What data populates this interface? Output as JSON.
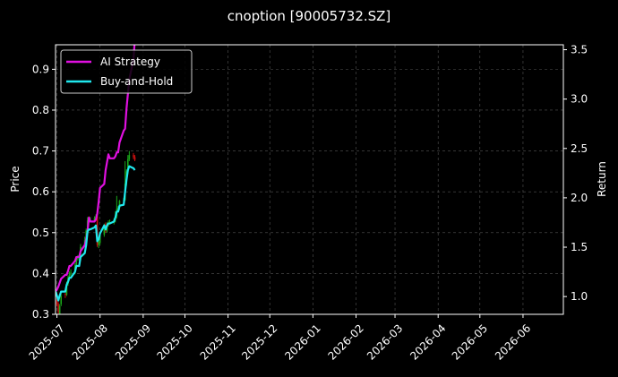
{
  "chart_data": {
    "type": "line",
    "title": "cnoption [90005732.SZ]",
    "ylabel_left": "Price",
    "ylabel_right": "Return",
    "x_ticks": [
      "2025-07",
      "2025-08",
      "2025-09",
      "2025-10",
      "2025-11",
      "2025-12",
      "2026-01",
      "2026-02",
      "2026-03",
      "2026-04",
      "2026-05",
      "2026-06"
    ],
    "xlim": [
      "2025-06-30",
      "2026-06-30"
    ],
    "ylim_left": [
      0.3,
      0.96
    ],
    "ylim_right": [
      0.82,
      3.55
    ],
    "yticks_left": [
      "0.3",
      "0.4",
      "0.5",
      "0.6",
      "0.7",
      "0.8",
      "0.9"
    ],
    "yticks_right": [
      "1.0",
      "1.5",
      "2.0",
      "2.5",
      "3.0",
      "3.5"
    ],
    "grid": true,
    "legend_position": "top-left",
    "colors": {
      "background": "#000000",
      "ai_strategy": "#e010e0",
      "buy_and_hold": "#20e8ee",
      "candle_up": "#1aa81a",
      "candle_down": "#cc1010",
      "grid": "#555555"
    },
    "series": [
      {
        "name": "AI Strategy",
        "axis": "right",
        "x": [
          "2025-06-30",
          "2025-07-01",
          "2025-07-02",
          "2025-07-03",
          "2025-07-04",
          "2025-07-07",
          "2025-07-08",
          "2025-07-09",
          "2025-07-10",
          "2025-07-11",
          "2025-07-14",
          "2025-07-15",
          "2025-07-16",
          "2025-07-17",
          "2025-07-18",
          "2025-07-21",
          "2025-07-22",
          "2025-07-23",
          "2025-07-24",
          "2025-07-25",
          "2025-07-28",
          "2025-07-29",
          "2025-07-30",
          "2025-07-31",
          "2025-08-01",
          "2025-08-04",
          "2025-08-05",
          "2025-08-06",
          "2025-08-07",
          "2025-08-08",
          "2025-08-11",
          "2025-08-12",
          "2025-08-13",
          "2025-08-14",
          "2025-08-15",
          "2025-08-18",
          "2025-08-19",
          "2025-08-20",
          "2025-08-21",
          "2025-08-22",
          "2025-08-25",
          "2025-08-26"
        ],
        "values": [
          1.05,
          1.07,
          1.1,
          1.14,
          1.18,
          1.22,
          1.22,
          1.26,
          1.31,
          1.31,
          1.36,
          1.4,
          1.4,
          1.4,
          1.46,
          1.52,
          1.58,
          1.66,
          1.8,
          1.76,
          1.76,
          1.78,
          1.84,
          1.96,
          2.1,
          2.14,
          2.28,
          2.36,
          2.44,
          2.4,
          2.4,
          2.42,
          2.46,
          2.46,
          2.56,
          2.68,
          2.7,
          2.9,
          3.05,
          3.2,
          3.4,
          3.6
        ]
      },
      {
        "name": "Buy-and-Hold",
        "axis": "right",
        "x": [
          "2025-06-30",
          "2025-07-01",
          "2025-07-02",
          "2025-07-03",
          "2025-07-04",
          "2025-07-07",
          "2025-07-08",
          "2025-07-09",
          "2025-07-10",
          "2025-07-11",
          "2025-07-14",
          "2025-07-15",
          "2025-07-16",
          "2025-07-17",
          "2025-07-18",
          "2025-07-21",
          "2025-07-22",
          "2025-07-23",
          "2025-07-24",
          "2025-07-25",
          "2025-07-28",
          "2025-07-29",
          "2025-07-30",
          "2025-07-31",
          "2025-08-01",
          "2025-08-04",
          "2025-08-05",
          "2025-08-06",
          "2025-08-07",
          "2025-08-08",
          "2025-08-11",
          "2025-08-12",
          "2025-08-13",
          "2025-08-14",
          "2025-08-15",
          "2025-08-18",
          "2025-08-19",
          "2025-08-20",
          "2025-08-21",
          "2025-08-22",
          "2025-08-25",
          "2025-08-26"
        ],
        "values": [
          1.05,
          1.01,
          0.96,
          1.01,
          1.05,
          1.05,
          1.12,
          1.15,
          1.19,
          1.19,
          1.25,
          1.31,
          1.31,
          1.31,
          1.4,
          1.44,
          1.52,
          1.66,
          1.68,
          1.68,
          1.7,
          1.72,
          1.56,
          1.58,
          1.64,
          1.72,
          1.68,
          1.72,
          1.74,
          1.74,
          1.76,
          1.8,
          1.86,
          1.86,
          1.92,
          1.93,
          2.06,
          2.18,
          2.28,
          2.32,
          2.3,
          2.28
        ]
      }
    ],
    "candles": {
      "axis": "left",
      "x": [
        "2025-07-01",
        "2025-07-02",
        "2025-07-03",
        "2025-07-04",
        "2025-07-07",
        "2025-07-08",
        "2025-07-09",
        "2025-07-10",
        "2025-07-11",
        "2025-07-14",
        "2025-07-15",
        "2025-07-16",
        "2025-07-17",
        "2025-07-18",
        "2025-07-21",
        "2025-07-22",
        "2025-07-23",
        "2025-07-24",
        "2025-07-25",
        "2025-07-28",
        "2025-07-29",
        "2025-07-30",
        "2025-07-31",
        "2025-08-01",
        "2025-08-04",
        "2025-08-05",
        "2025-08-06",
        "2025-08-07",
        "2025-08-08",
        "2025-08-11",
        "2025-08-12",
        "2025-08-13",
        "2025-08-14",
        "2025-08-15",
        "2025-08-18",
        "2025-08-19",
        "2025-08-20",
        "2025-08-21",
        "2025-08-22",
        "2025-08-25",
        "2025-08-26"
      ],
      "open": [
        0.335,
        0.325,
        0.3,
        0.325,
        0.35,
        0.348,
        0.375,
        0.39,
        0.402,
        0.402,
        0.42,
        0.438,
        0.438,
        0.44,
        0.47,
        0.48,
        0.5,
        0.53,
        0.53,
        0.53,
        0.535,
        0.54,
        0.47,
        0.475,
        0.495,
        0.52,
        0.505,
        0.52,
        0.525,
        0.525,
        0.53,
        0.54,
        0.56,
        0.56,
        0.578,
        0.58,
        0.62,
        0.65,
        0.68,
        0.69,
        0.685
      ],
      "close": [
        0.325,
        0.305,
        0.32,
        0.345,
        0.348,
        0.375,
        0.39,
        0.4,
        0.402,
        0.42,
        0.438,
        0.438,
        0.44,
        0.465,
        0.482,
        0.505,
        0.53,
        0.528,
        0.53,
        0.535,
        0.54,
        0.47,
        0.478,
        0.495,
        0.518,
        0.505,
        0.52,
        0.525,
        0.525,
        0.53,
        0.54,
        0.558,
        0.56,
        0.578,
        0.58,
        0.62,
        0.65,
        0.68,
        0.69,
        0.685,
        0.678
      ],
      "high": [
        0.34,
        0.33,
        0.325,
        0.35,
        0.352,
        0.38,
        0.395,
        0.405,
        0.41,
        0.425,
        0.442,
        0.445,
        0.445,
        0.472,
        0.49,
        0.51,
        0.538,
        0.54,
        0.538,
        0.54,
        0.545,
        0.545,
        0.482,
        0.498,
        0.522,
        0.525,
        0.525,
        0.53,
        0.532,
        0.535,
        0.552,
        0.59,
        0.565,
        0.58,
        0.585,
        0.675,
        0.655,
        0.69,
        0.7,
        0.695,
        0.69
      ],
      "low": [
        0.32,
        0.3,
        0.298,
        0.32,
        0.34,
        0.345,
        0.37,
        0.385,
        0.395,
        0.398,
        0.415,
        0.432,
        0.432,
        0.436,
        0.466,
        0.476,
        0.498,
        0.524,
        0.526,
        0.526,
        0.53,
        0.465,
        0.462,
        0.47,
        0.49,
        0.5,
        0.5,
        0.515,
        0.52,
        0.52,
        0.525,
        0.535,
        0.555,
        0.555,
        0.575,
        0.578,
        0.615,
        0.645,
        0.675,
        0.68,
        0.675
      ]
    }
  }
}
